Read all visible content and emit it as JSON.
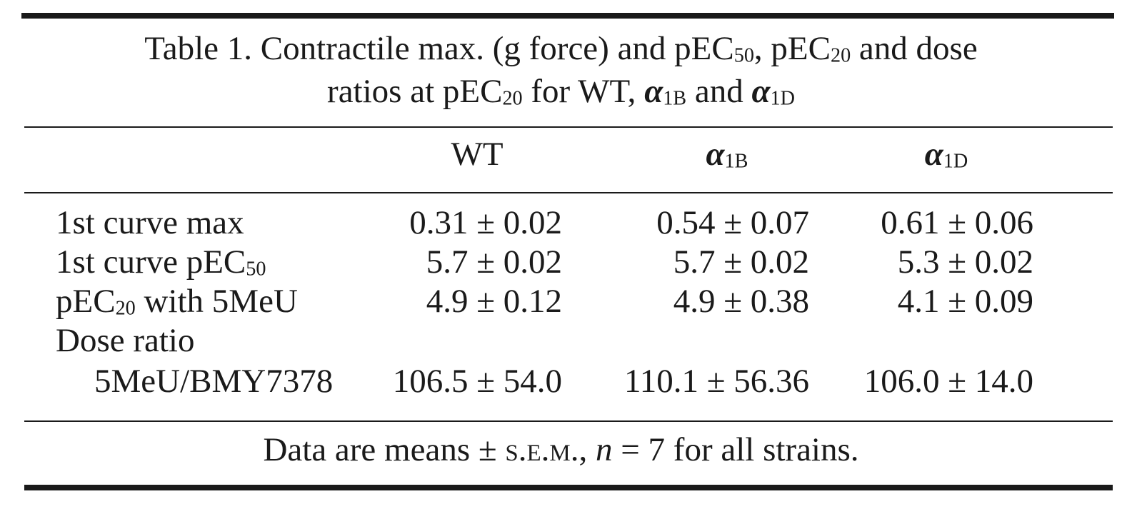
{
  "title": [
    [
      {
        "t": "Table 1. Contractile max. (g force) and pEC"
      },
      {
        "t": "50",
        "style": "sub"
      },
      {
        "t": ", pEC"
      },
      {
        "t": "20",
        "style": "sub"
      },
      {
        "t": " and dose"
      }
    ],
    [
      {
        "t": "ratios at pEC"
      },
      {
        "t": "20",
        "style": "sub"
      },
      {
        "t": " for WT, "
      },
      {
        "t": "α",
        "style": "bold"
      },
      {
        "t": "1B",
        "style": "sub"
      },
      {
        "t": " and "
      },
      {
        "t": "α",
        "style": "bold"
      },
      {
        "t": "1D",
        "style": "sub"
      }
    ]
  ],
  "table": {
    "header": [
      [
        {
          "t": "WT"
        }
      ],
      [
        {
          "t": "α",
          "style": "bold"
        },
        {
          "t": "1B",
          "style": "sub"
        }
      ],
      [
        {
          "t": "α",
          "style": "bold"
        },
        {
          "t": "1D",
          "style": "sub"
        }
      ]
    ],
    "rows": [
      {
        "label": [
          [
            {
              "t": "1st curve max"
            }
          ]
        ],
        "cells": [
          "0.31 ± 0.02",
          "0.54 ± 0.07",
          "0.61 ± 0.06"
        ]
      },
      {
        "label": [
          [
            {
              "t": "1st curve pEC"
            },
            {
              "t": "50",
              "style": "sub"
            }
          ]
        ],
        "cells": [
          "5.7 ± 0.02",
          "5.7 ± 0.02",
          "5.3 ± 0.02"
        ]
      },
      {
        "label": [
          [
            {
              "t": "pEC"
            },
            {
              "t": "20",
              "style": "sub"
            },
            {
              "t": " with 5MeU"
            }
          ]
        ],
        "cells": [
          "4.9 ± 0.12",
          "4.9 ± 0.38",
          "4.1 ± 0.09"
        ]
      },
      {
        "label": [
          [
            {
              "t": "Dose ratio"
            }
          ],
          [
            {
              "t": "5MeU/BMY7378"
            }
          ]
        ],
        "cells": [
          "106.5 ± 54.0",
          "110.1 ± 56.36",
          "106.0 ± 14.0"
        ]
      }
    ]
  },
  "footnote": [
    {
      "t": "Data are means ± "
    },
    {
      "t": "s.e.m.",
      "style": "sc"
    },
    {
      "t": ", "
    },
    {
      "t": "n",
      "style": "italic"
    },
    {
      "t": " = 7 for all strains."
    }
  ]
}
